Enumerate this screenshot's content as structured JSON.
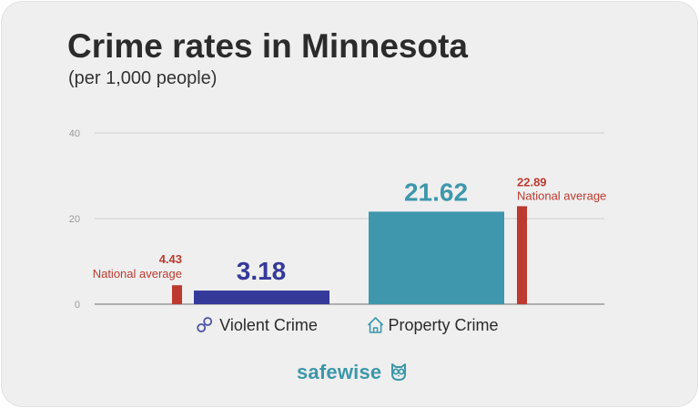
{
  "title": "Crime rates in Minnesota",
  "subtitle": "(per 1,000 people)",
  "brand": {
    "part1": "safe",
    "part2": "wise",
    "icon": "owl-icon"
  },
  "colors": {
    "violent": "#34399a",
    "property": "#3e97ac",
    "national": "#bc3a2f",
    "grid": "#cccccc",
    "tick": "#999999"
  },
  "chart_data": {
    "type": "bar",
    "ylim": [
      0,
      40
    ],
    "yticks": [
      0,
      20,
      40
    ],
    "grid": true,
    "categories": [
      "Violent Crime",
      "Property Crime"
    ],
    "category_icons": [
      "handcuffs-icon",
      "house-icon"
    ],
    "series": [
      {
        "values": [
          3.18,
          21.62
        ],
        "value_labels": [
          "3.18",
          "21.62"
        ]
      },
      {
        "name": "National average",
        "values": [
          4.43,
          22.89
        ],
        "value_labels": [
          "4.43",
          "22.89"
        ]
      }
    ]
  }
}
